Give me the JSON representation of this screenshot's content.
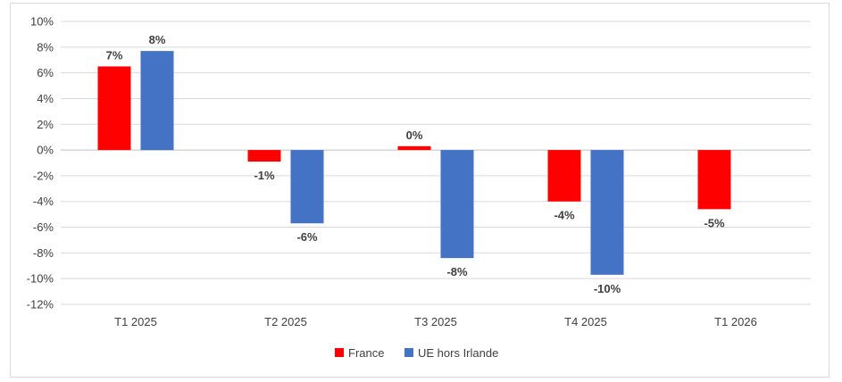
{
  "chart_data": {
    "type": "bar",
    "categories": [
      "T1 2025",
      "T2 2025",
      "T3 2025",
      "T4 2025",
      "T1 2026"
    ],
    "series": [
      {
        "name": "France",
        "color": "#ff0000",
        "values": [
          6.5,
          -0.9,
          0.3,
          -4.0,
          -4.6
        ],
        "labels": [
          "7%",
          "-1%",
          "0%",
          "-4%",
          "-5%"
        ]
      },
      {
        "name": "UE hors Irlande",
        "color": "#4472c4",
        "values": [
          7.7,
          -5.7,
          -8.4,
          -9.7,
          null
        ],
        "labels": [
          "8%",
          "-6%",
          "-8%",
          "-10%",
          ""
        ]
      }
    ],
    "ylim": [
      -12,
      10
    ],
    "yticks": [
      10,
      8,
      6,
      4,
      2,
      0,
      -2,
      -4,
      -6,
      -8,
      -10,
      -12
    ],
    "ytick_labels": [
      "10%",
      "8%",
      "6%",
      "4%",
      "2%",
      "0%",
      "-2%",
      "-4%",
      "-6%",
      "-8%",
      "-10%",
      "-12%"
    ],
    "grid": true,
    "legend_position": "bottom",
    "title": "",
    "xlabel": "",
    "ylabel": ""
  }
}
